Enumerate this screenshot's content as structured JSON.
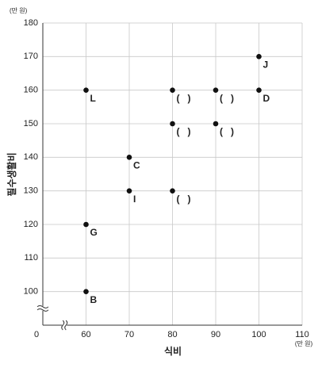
{
  "chart_data": {
    "type": "scatter",
    "y_label": "필수생활비",
    "x_label": "식비",
    "y_unit": "(만 원)",
    "x_unit": "(만 원)",
    "origin_label": "0",
    "x": [
      60,
      80,
      90,
      100,
      100,
      80,
      90,
      70,
      70,
      80,
      60,
      60
    ],
    "values": [
      160,
      160,
      160,
      160,
      170,
      150,
      150,
      140,
      130,
      130,
      120,
      100
    ],
    "point_labels": [
      "L",
      "(   )",
      "(   )",
      "D",
      "J",
      "(   )",
      "(   )",
      "C",
      "I",
      "(   )",
      "G",
      "B"
    ],
    "color": "#111111",
    "xlim": [
      50,
      110
    ],
    "xticks": [
      60,
      70,
      80,
      90,
      100,
      110
    ],
    "ylim": [
      90,
      180
    ],
    "yticks": [
      100,
      110,
      120,
      130,
      140,
      150,
      160,
      170,
      180
    ],
    "grid": true,
    "axis_break": true
  }
}
